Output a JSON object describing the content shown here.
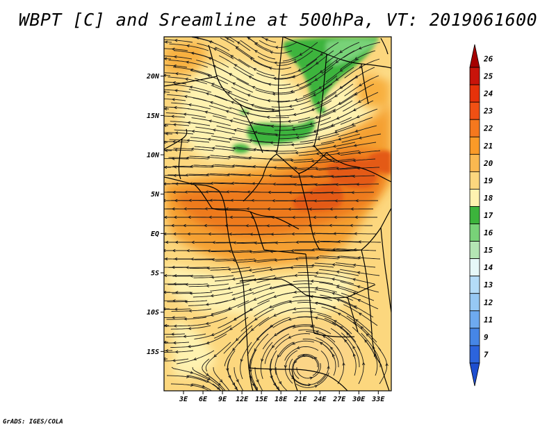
{
  "title": "WBPT [C] and Sreamline at 500hPa, VT: 2019061600",
  "footer": "GrADS: IGES/COLA",
  "map": {
    "variable": "Wet-bulb potential temperature",
    "units": "C",
    "level": "500hPa",
    "region": "Central and Southern Africa",
    "lon_range": [
      0,
      35
    ],
    "lat_range": [
      -20,
      25
    ],
    "lon_ticks": [
      "3E",
      "6E",
      "9E",
      "12E",
      "15E",
      "18E",
      "21E",
      "24E",
      "27E",
      "30E",
      "33E"
    ],
    "lat_ticks": [
      "20N",
      "15N",
      "10N",
      "5N",
      "EQ",
      "5S",
      "10S",
      "15S"
    ],
    "features": {
      "cool_pocket_north": "light-to-mid green (17-18 C) over northeast Sahel",
      "warm_core": "orange/red (21-23 C) band from central Africa to east",
      "anticyclone": "closed streamline circulation centered near 22E 17S"
    }
  },
  "colorbar": {
    "levels": [
      "26",
      "25",
      "24",
      "23",
      "22",
      "21",
      "20",
      "19",
      "18",
      "17",
      "16",
      "15",
      "14",
      "13",
      "12",
      "11",
      "9",
      "7"
    ],
    "colors": [
      "#a50000",
      "#c8140a",
      "#e6320a",
      "#f05014",
      "#f5781e",
      "#fa9a28",
      "#fab850",
      "#fcd77e",
      "#fef2b0",
      "#3cb43c",
      "#78d278",
      "#b4e6b4",
      "#e6f8f8",
      "#b4dcf8",
      "#96c8f4",
      "#6eaaf0",
      "#4686e6",
      "#2c64dc",
      "#1e4ecf"
    ]
  },
  "palette": {
    "ocean_land_base": "#fcd77e",
    "pale": "#fef2b0",
    "orange": "#f5a030",
    "deep_orange": "#ee7a1e",
    "red_orange": "#e45a16",
    "green": "#3cb43c",
    "mid_green": "#5fc85a",
    "line": "#1a1a1a"
  }
}
